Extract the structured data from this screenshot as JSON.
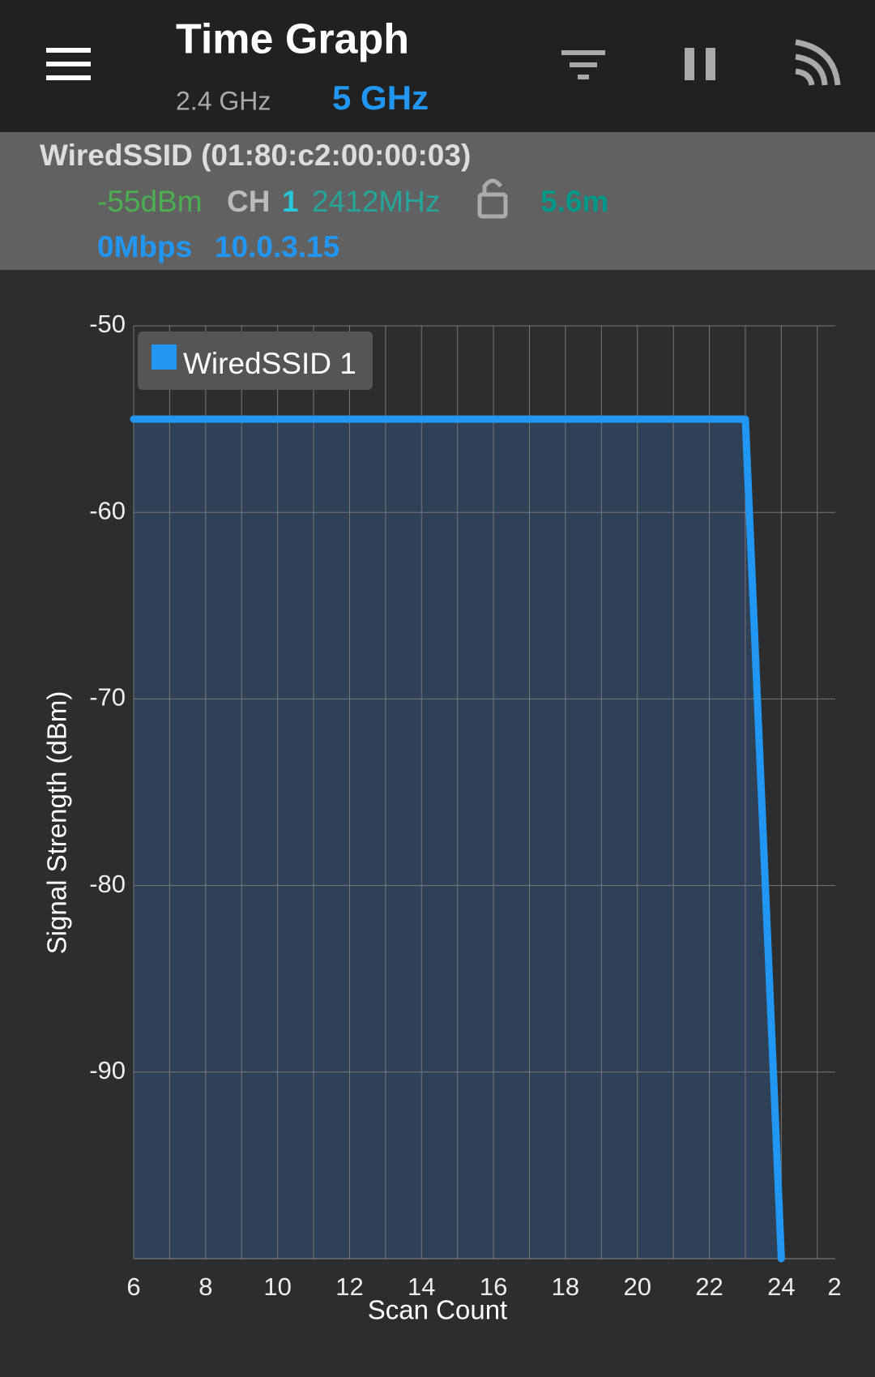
{
  "header": {
    "title": "Time Graph",
    "band_24": "2.4 GHz",
    "band_5": "5 GHz"
  },
  "info": {
    "ssid": "WiredSSID (01:80:c2:00:00:03)",
    "level": "-55dBm",
    "ch_label": "CH",
    "channel": "1",
    "frequency": "2412MHz",
    "distance": "5.6m",
    "speed": "0Mbps",
    "ip": "10.0.3.15"
  },
  "chart_data": {
    "type": "line",
    "x_label": "Scan Count",
    "y_label": "Signal Strength (dBm)",
    "x": [
      6,
      7,
      8,
      9,
      10,
      11,
      12,
      13,
      14,
      15,
      16,
      17,
      18,
      19,
      20,
      21,
      22,
      23,
      24
    ],
    "series": [
      {
        "name": "WiredSSID 1",
        "color": "#2196f3",
        "fill": "#2e4156",
        "values": [
          -55,
          -55,
          -55,
          -55,
          -55,
          -55,
          -55,
          -55,
          -55,
          -55,
          -55,
          -55,
          -55,
          -55,
          -55,
          -55,
          -55,
          -55,
          -100
        ]
      }
    ],
    "xlim": [
      6,
      25.5
    ],
    "ylim": [
      -100,
      -50
    ],
    "xticks": [
      6,
      8,
      10,
      12,
      14,
      16,
      18,
      20,
      22,
      24,
      {
        "value": 26,
        "label": "2"
      }
    ],
    "x_minor_ticks": [
      7,
      9,
      11,
      13,
      15,
      17,
      19,
      21,
      23,
      25
    ],
    "yticks": [
      -50,
      -60,
      -70,
      -80,
      -90
    ],
    "grid": true,
    "legend": "top-left"
  }
}
